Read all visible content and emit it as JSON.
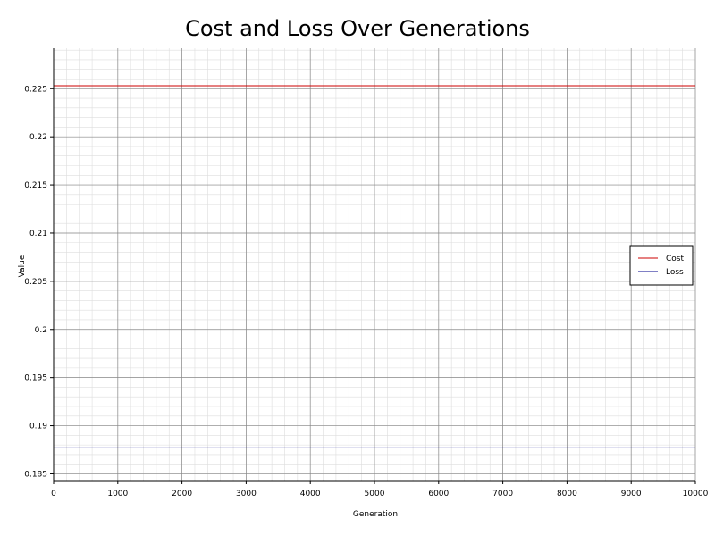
{
  "chart_data": {
    "type": "line",
    "title": "Cost and Loss Over Generations",
    "xlabel": "Generation",
    "ylabel": "Value",
    "xlim": [
      0,
      10000
    ],
    "ylim": [
      0.1843,
      0.2292
    ],
    "x_ticks": [
      0,
      1000,
      2000,
      3000,
      4000,
      5000,
      6000,
      7000,
      8000,
      9000,
      10000
    ],
    "y_ticks": [
      0.185,
      0.19,
      0.195,
      0.2,
      0.205,
      0.21,
      0.215,
      0.22,
      0.225
    ],
    "y_tick_labels": [
      "0.185",
      "0.19",
      "0.195",
      "0.2",
      "0.205",
      "0.21",
      "0.215",
      "0.22",
      "0.225"
    ],
    "grid": true,
    "legend_position": "right",
    "series": [
      {
        "name": "Cost",
        "color": "#cc0000",
        "x": [
          0,
          10000
        ],
        "y": [
          0.2253,
          0.2253
        ]
      },
      {
        "name": "Loss",
        "color": "#00008b",
        "x": [
          0,
          10000
        ],
        "y": [
          0.1877,
          0.1877
        ]
      }
    ]
  }
}
